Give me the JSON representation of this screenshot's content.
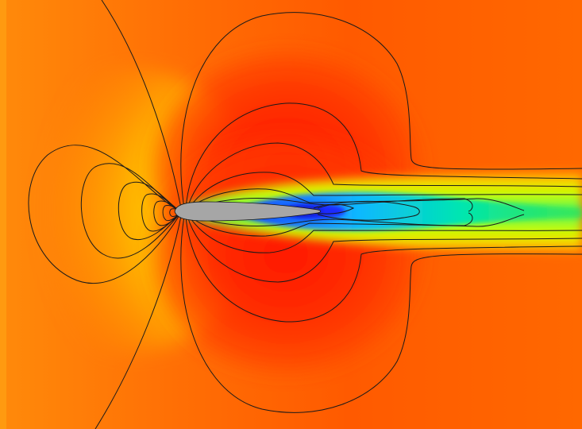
{
  "figure": {
    "kind": "flow-field-contour-plot",
    "subject": "airfoil",
    "colormap": [
      "#ff6a00",
      "#ff3d00",
      "#ffd400",
      "#b0ff00",
      "#00e47a",
      "#1fd6ff",
      "#1a3cff",
      "#ff8a00"
    ],
    "airfoil_color": "#a6a6a6",
    "contour_line_color": "#1a1a1a",
    "background_color": "#ff7a10"
  }
}
